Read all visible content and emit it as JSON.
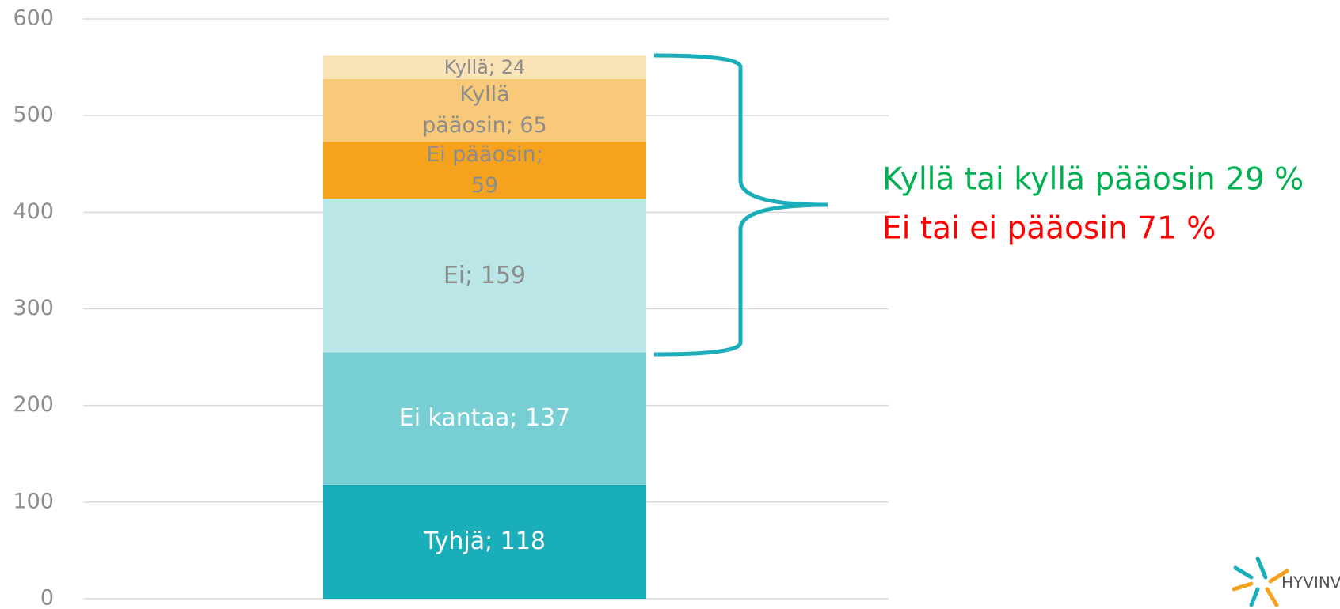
{
  "chart_data": {
    "type": "stacked_bar",
    "categories": [
      null
    ],
    "series": [
      {
        "name": "Tyhjä",
        "color": "#1aaebb",
        "label_color": "#ffffff",
        "values": [
          118
        ],
        "value_labels": [
          "Tyhjä; 118"
        ]
      },
      {
        "name": "Ei kantaa",
        "color": "#77cfd3",
        "label_color": "#ffffff",
        "values": [
          137
        ],
        "value_labels": [
          "Ei kantaa; 137"
        ]
      },
      {
        "name": "Ei",
        "color": "#bae6e8",
        "label_color": "#8c8c8c",
        "values": [
          159
        ],
        "value_labels": [
          "Ei; 159"
        ]
      },
      {
        "name": "Ei pääosin",
        "color": "#f5a31f",
        "label_color": "#8c8c8c",
        "values": [
          59
        ],
        "value_labels": [
          "Ei pääosin; 59"
        ]
      },
      {
        "name": "Kyllä pääosin",
        "color": "#f9c97a",
        "label_color": "#8c8c8c",
        "values": [
          65
        ],
        "value_labels": [
          "Kyllä pääosin; 65"
        ]
      },
      {
        "name": "Kyllä",
        "color": "#fbe3b8",
        "label_color": "#8c8c8c",
        "values": [
          24
        ],
        "value_labels": [
          "Kyllä; 24"
        ]
      }
    ],
    "ylim": [
      0,
      600
    ],
    "yticks": [
      0,
      100,
      200,
      300,
      400,
      500,
      600
    ],
    "grid": true,
    "annotations": [
      {
        "text": "Kyllä tai kyllä pääosin 29 %",
        "color": "#00b050"
      },
      {
        "text": "Ei tai ei pääosin 71 %",
        "color": "#ff0000"
      }
    ],
    "logo_text": "HYVINV"
  }
}
